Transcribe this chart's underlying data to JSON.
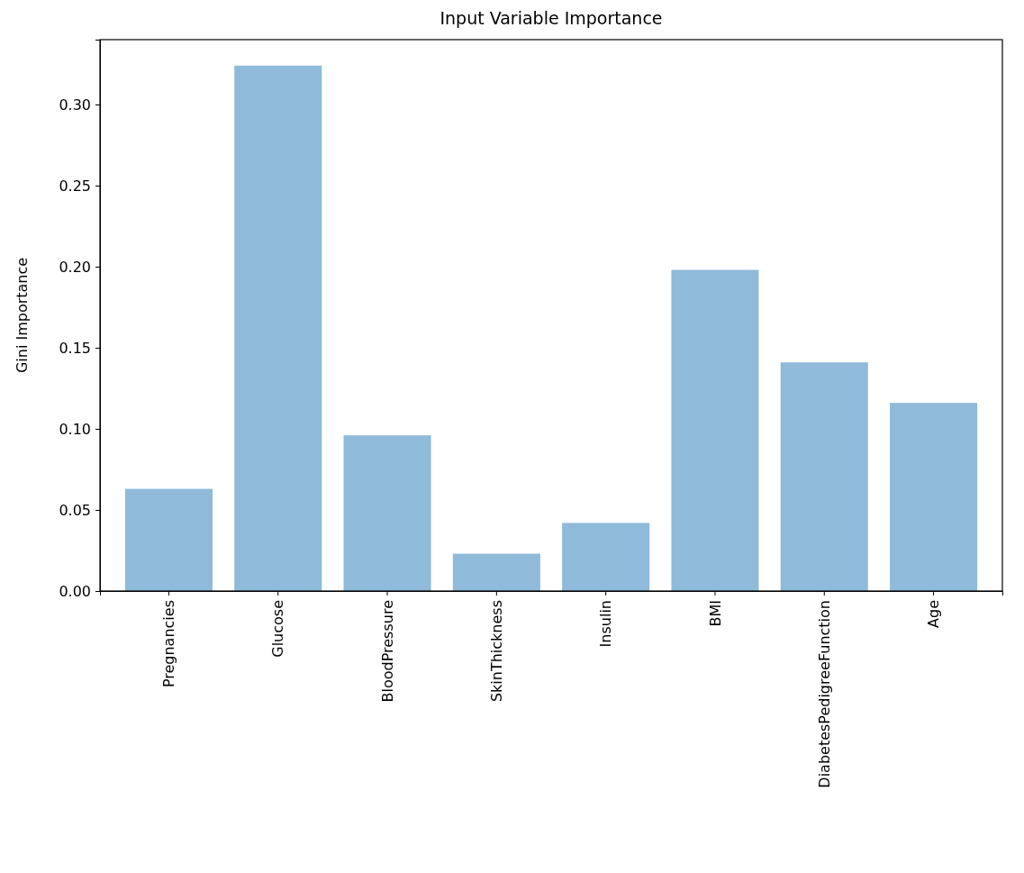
{
  "chart_data": {
    "type": "bar",
    "title": "Input Variable Importance",
    "ylabel": "Gini Importance",
    "categories": [
      "Pregnancies",
      "Glucose",
      "BloodPressure",
      "SkinThickness",
      "Insulin",
      "BMI",
      "DiabetesPedigreeFunction",
      "Age"
    ],
    "values": [
      0.063,
      0.324,
      0.096,
      0.023,
      0.042,
      0.198,
      0.141,
      0.116
    ],
    "color": "#8fbad9",
    "ylim": [
      0,
      0.34
    ],
    "yticks": [
      {
        "value": 0,
        "label": "0.00"
      },
      {
        "value": 0.05,
        "label": "0.05"
      },
      {
        "value": 0.1,
        "label": "0.10"
      },
      {
        "value": 0.15,
        "label": "0.15"
      },
      {
        "value": 0.2,
        "label": "0.20"
      },
      {
        "value": 0.25,
        "label": "0.25"
      },
      {
        "value": 0.3,
        "label": "0.30"
      }
    ],
    "grid": false
  }
}
